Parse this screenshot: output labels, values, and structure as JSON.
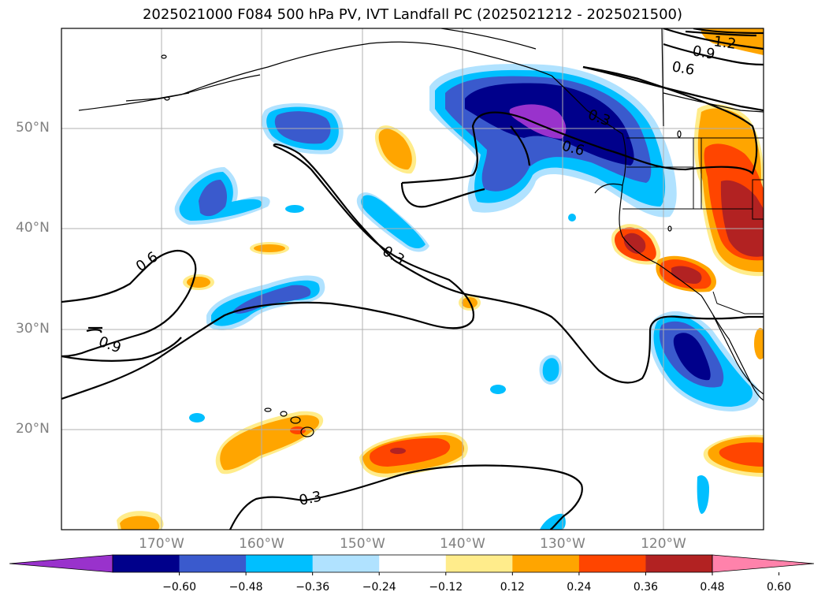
{
  "title": "2025021000 F084 500 hPa PV, IVT Landfall PC (2025021212 - 2025021500)",
  "map": {
    "projection": "plate-carree",
    "lon_range": [
      -180,
      -110
    ],
    "lat_range": [
      10,
      60
    ],
    "grid": true,
    "lat_labels": [
      "50°N",
      "40°N",
      "30°N",
      "20°N"
    ],
    "lon_labels": [
      "170°W",
      "160°W",
      "150°W",
      "140°W",
      "130°W",
      "120°W"
    ],
    "contour_labels": [
      "0.3",
      "0.3",
      "0.3",
      "0.6",
      "0.6",
      "0.6",
      "0.9",
      "0.9",
      "1.2"
    ]
  },
  "colorbar": {
    "tick_labels": [
      "−0.60",
      "−0.48",
      "−0.36",
      "−0.24",
      "−0.12",
      "0.12",
      "0.24",
      "0.36",
      "0.48",
      "0.60"
    ],
    "levels": [
      -0.6,
      -0.48,
      -0.36,
      -0.24,
      -0.12,
      0.12,
      0.24,
      0.36,
      0.48,
      0.6
    ],
    "colors": [
      "#9932cc",
      "#00008b",
      "#3a5acd",
      "#00bfff",
      "#b0e2ff",
      "#ffffff",
      "#ffec8b",
      "#ffa500",
      "#ff4500",
      "#b22222",
      "#ff82ab"
    ],
    "extend": "both"
  }
}
